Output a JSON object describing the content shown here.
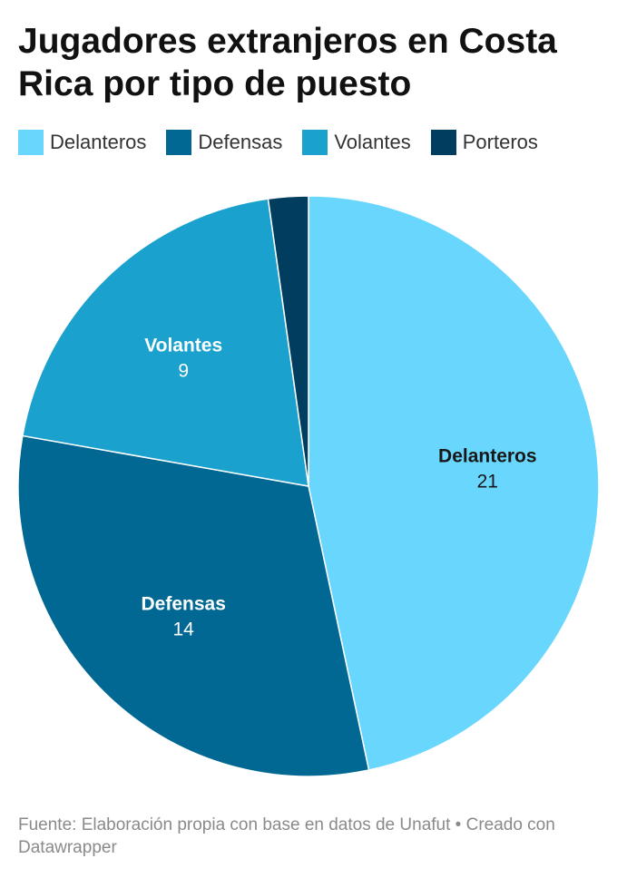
{
  "title": "Jugadores extranjeros en Costa Rica por tipo de puesto",
  "source": "Fuente: Elaboración propia con base en datos de Unafut • Creado con Datawrapper",
  "chart_data": {
    "type": "pie",
    "title": "Jugadores extranjeros en Costa Rica por tipo de puesto",
    "legend_position": "top",
    "slices": [
      {
        "label": "Delanteros",
        "value": 21,
        "color": "#68d6fd",
        "label_color": "#181818",
        "value_text": "21",
        "show_label": true
      },
      {
        "label": "Defensas",
        "value": 14,
        "color": "#006892",
        "label_color": "#ffffff",
        "value_text": "14",
        "show_label": true
      },
      {
        "label": "Volantes",
        "value": 9,
        "color": "#1aa1cd",
        "label_color": "#ffffff",
        "value_text": "9",
        "show_label": true
      },
      {
        "label": "Porteros",
        "value": 1,
        "color": "#003d5e",
        "label_color": "#ffffff",
        "value_text": "",
        "show_label": false
      }
    ]
  }
}
